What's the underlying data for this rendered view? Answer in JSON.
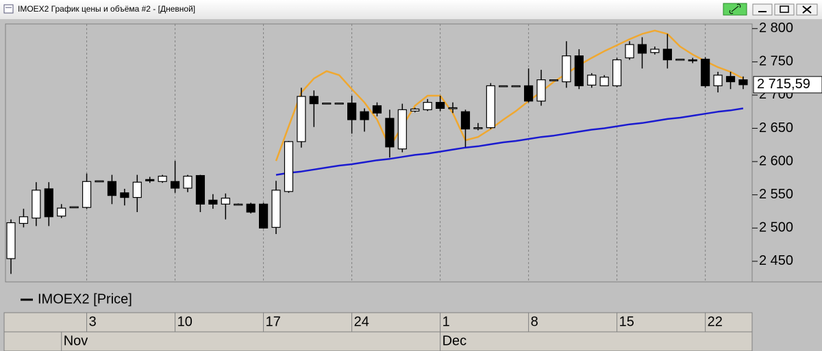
{
  "window": {
    "title": "IMOEX2 График цены и объёма #2 - [Дневной]"
  },
  "chart_data": {
    "type": "candlestick",
    "categories": [
      null,
      null,
      null,
      null,
      null,
      null,
      "3",
      null,
      null,
      null,
      null,
      null,
      null,
      "10",
      null,
      null,
      null,
      null,
      null,
      null,
      "17",
      null,
      null,
      null,
      null,
      null,
      null,
      "24",
      null,
      null,
      null,
      null,
      null,
      null,
      "1",
      null,
      null,
      null,
      null,
      null,
      null,
      "8",
      null,
      null,
      null,
      null,
      null,
      null,
      "15",
      null,
      null,
      null,
      null,
      null,
      null,
      "22",
      null,
      null,
      null
    ],
    "months": [
      null,
      null,
      null,
      null,
      "Nov",
      null,
      null,
      null,
      null,
      null,
      null,
      null,
      null,
      null,
      null,
      null,
      null,
      null,
      null,
      null,
      null,
      null,
      null,
      null,
      null,
      null,
      null,
      null,
      null,
      null,
      null,
      null,
      null,
      null,
      "Dec",
      null,
      null,
      null,
      null,
      null,
      null,
      null,
      null,
      null,
      null,
      null,
      null,
      null,
      null,
      null,
      null,
      null,
      null,
      null,
      null,
      null,
      null,
      null,
      null
    ],
    "series": [
      {
        "name": "IMOEX2 [Price]",
        "color": "#000000",
        "up_color": "#ffffff",
        "down_color": "#000000",
        "open": [
          2454,
          2507,
          2515,
          2559,
          2518,
          2532,
          2531,
          2571,
          2570,
          2553,
          2546,
          2573,
          2570,
          2570,
          2560,
          2579,
          2542,
          2536,
          2536,
          2536,
          2536,
          2501,
          2555,
          2630,
          2698,
          2688,
          2688,
          2688,
          2675,
          2684,
          2665,
          2619,
          2676,
          2678,
          2689,
          2680,
          2675,
          2650,
          2651,
          2714,
          2714,
          2714,
          2691,
          2723,
          2720,
          2759,
          2715,
          2714,
          2714,
          2756,
          2776,
          2764,
          2769,
          2754,
          2753,
          2754,
          2714,
          2728,
          2723
        ],
        "high": [
          2513,
          2529,
          2569,
          2569,
          2536,
          2532,
          2582,
          2571,
          2580,
          2559,
          2580,
          2577,
          2580,
          2601,
          2580,
          2580,
          2551,
          2552,
          2537,
          2538,
          2538,
          2571,
          2631,
          2711,
          2707,
          2688,
          2688,
          2699,
          2680,
          2689,
          2678,
          2687,
          2681,
          2694,
          2699,
          2689,
          2678,
          2658,
          2718,
          2714,
          2714,
          2740,
          2738,
          2723,
          2781,
          2769,
          2733,
          2730,
          2756,
          2781,
          2787,
          2773,
          2792,
          2754,
          2756,
          2757,
          2735,
          2735,
          2728
        ],
        "low": [
          2431,
          2501,
          2503,
          2503,
          2515,
          2532,
          2529,
          2571,
          2536,
          2534,
          2524,
          2568,
          2568,
          2553,
          2554,
          2524,
          2529,
          2513,
          2535,
          2522,
          2499,
          2491,
          2553,
          2621,
          2652,
          2688,
          2688,
          2642,
          2645,
          2668,
          2606,
          2614,
          2674,
          2676,
          2676,
          2673,
          2622,
          2647,
          2649,
          2714,
          2714,
          2689,
          2684,
          2723,
          2711,
          2709,
          2711,
          2714,
          2712,
          2753,
          2740,
          2761,
          2740,
          2754,
          2748,
          2711,
          2704,
          2709,
          2709
        ],
        "close": [
          2508,
          2517,
          2557,
          2517,
          2530,
          2532,
          2570,
          2571,
          2549,
          2546,
          2569,
          2571,
          2578,
          2560,
          2578,
          2536,
          2536,
          2545,
          2536,
          2524,
          2500,
          2557,
          2630,
          2698,
          2687,
          2688,
          2688,
          2663,
          2663,
          2673,
          2622,
          2678,
          2679,
          2689,
          2680,
          2681,
          2649,
          2651,
          2714,
          2714,
          2714,
          2691,
          2723,
          2723,
          2759,
          2714,
          2730,
          2727,
          2753,
          2776,
          2763,
          2769,
          2753,
          2754,
          2752,
          2714,
          2730,
          2720,
          2715.59
        ]
      }
    ],
    "overlays": [
      {
        "color": "#f0a830",
        "values": [
          null,
          null,
          null,
          null,
          null,
          null,
          null,
          null,
          null,
          null,
          null,
          null,
          null,
          null,
          null,
          null,
          null,
          null,
          null,
          null,
          null,
          2601,
          2653,
          2704,
          2725,
          2736,
          2730,
          2709,
          2689,
          2663,
          2622,
          2653,
          2684,
          2699,
          2699,
          2673,
          2632,
          2637,
          2649,
          2663,
          2676,
          2691,
          2705,
          2720,
          2732,
          2745,
          2756,
          2766,
          2775,
          2784,
          2792,
          2797,
          2792,
          2773,
          2761,
          2751,
          2742,
          2735,
          2725
        ]
      },
      {
        "color": "#1a1ad0",
        "values": [
          null,
          null,
          null,
          null,
          null,
          null,
          null,
          null,
          null,
          null,
          null,
          null,
          null,
          null,
          null,
          null,
          null,
          null,
          null,
          null,
          null,
          2580,
          2583,
          2585,
          2588,
          2591,
          2594,
          2596,
          2599,
          2602,
          2604,
          2607,
          2610,
          2612,
          2615,
          2618,
          2621,
          2623,
          2626,
          2629,
          2631,
          2634,
          2637,
          2639,
          2642,
          2645,
          2648,
          2650,
          2653,
          2656,
          2658,
          2661,
          2664,
          2666,
          2669,
          2672,
          2675,
          2677,
          2680
        ]
      }
    ],
    "last_price": {
      "value": 2715.59,
      "label": "2 715,59"
    },
    "ylim": [
      2419,
      2807
    ],
    "yticks": [
      {
        "value": 2450,
        "label": "2 450"
      },
      {
        "value": 2500,
        "label": "2 500"
      },
      {
        "value": 2550,
        "label": "2 550"
      },
      {
        "value": 2600,
        "label": "2 600"
      },
      {
        "value": 2650,
        "label": "2 650"
      },
      {
        "value": 2700,
        "label": "2 700"
      },
      {
        "value": 2750,
        "label": "2 750"
      },
      {
        "value": 2800,
        "label": "2 800"
      }
    ],
    "grid": "vertical"
  }
}
